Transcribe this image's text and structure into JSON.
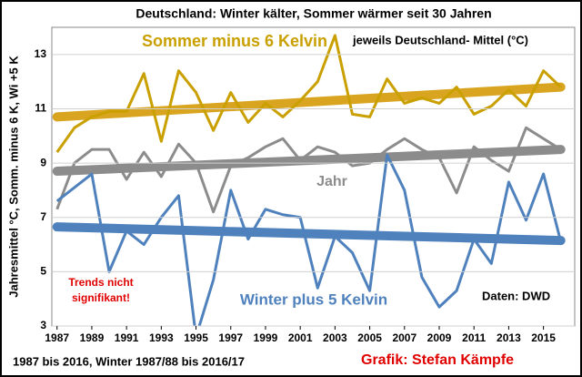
{
  "chart_data": {
    "type": "line",
    "title": "Deutschland: Winter kälter, Sommer wärmer seit 30 Jahren",
    "y_label": "Jahresmittel °C, Somm. minus 6 K, Wi +5 K",
    "footer_left": "1987 bis 2016, Winter 1987/88 bis 2016/17",
    "footer_right": "Grafik: Stefan Kämpfe",
    "note": "jeweils Deutschland- Mittel (°C)",
    "trend_note": [
      "Trends nicht",
      "signifikant!"
    ],
    "source": "Daten: DWD",
    "x": [
      1987,
      1988,
      1989,
      1990,
      1991,
      1992,
      1993,
      1994,
      1995,
      1996,
      1997,
      1998,
      1999,
      2000,
      2001,
      2002,
      2003,
      2004,
      2005,
      2006,
      2007,
      2008,
      2009,
      2010,
      2011,
      2012,
      2013,
      2014,
      2015,
      2016
    ],
    "xlim": [
      1986.7,
      2016.8
    ],
    "xticks": [
      1987,
      1989,
      1991,
      1993,
      1995,
      1997,
      1999,
      2001,
      2003,
      2005,
      2007,
      2009,
      2011,
      2013,
      2015
    ],
    "ylim": [
      3,
      14
    ],
    "yticks": [
      3,
      5,
      7,
      9,
      11,
      13
    ],
    "grid": true,
    "series": [
      {
        "name": "Sommer minus 6 Kelvin",
        "color": "#c9a000",
        "trend_color": "#d9a520",
        "values": [
          9.4,
          10.3,
          10.7,
          10.9,
          10.9,
          12.3,
          9.8,
          12.4,
          11.6,
          10.2,
          11.6,
          10.5,
          11.2,
          10.7,
          11.3,
          12.0,
          13.7,
          10.8,
          10.7,
          12.1,
          11.2,
          11.4,
          11.2,
          11.8,
          10.8,
          11.1,
          11.7,
          11.1,
          12.4,
          11.8
        ],
        "trend": [
          10.7,
          11.8
        ]
      },
      {
        "name": "Jahr",
        "color": "#8c8c8c",
        "trend_color": "#8c8c8c",
        "values": [
          7.3,
          9.0,
          9.5,
          9.5,
          8.4,
          9.4,
          8.5,
          9.7,
          9.0,
          7.2,
          8.9,
          9.2,
          9.6,
          9.9,
          9.1,
          9.6,
          9.4,
          8.9,
          9.0,
          9.5,
          9.9,
          9.5,
          9.2,
          7.9,
          9.6,
          9.1,
          8.7,
          10.3,
          9.9,
          9.5
        ],
        "trend": [
          8.7,
          9.5
        ]
      },
      {
        "name": "Winter plus 5 Kelvin",
        "color": "#4f81bd",
        "trend_color": "#4f81bd",
        "values": [
          7.6,
          8.1,
          8.6,
          5.0,
          6.5,
          6.0,
          7.0,
          7.8,
          2.6,
          4.7,
          8.0,
          6.2,
          7.3,
          7.1,
          7.0,
          4.4,
          6.3,
          5.7,
          4.3,
          9.3,
          8.0,
          4.8,
          3.7,
          4.3,
          6.2,
          5.3,
          8.3,
          6.9,
          8.6,
          6.1
        ],
        "trend": [
          6.65,
          6.15
        ]
      }
    ]
  }
}
